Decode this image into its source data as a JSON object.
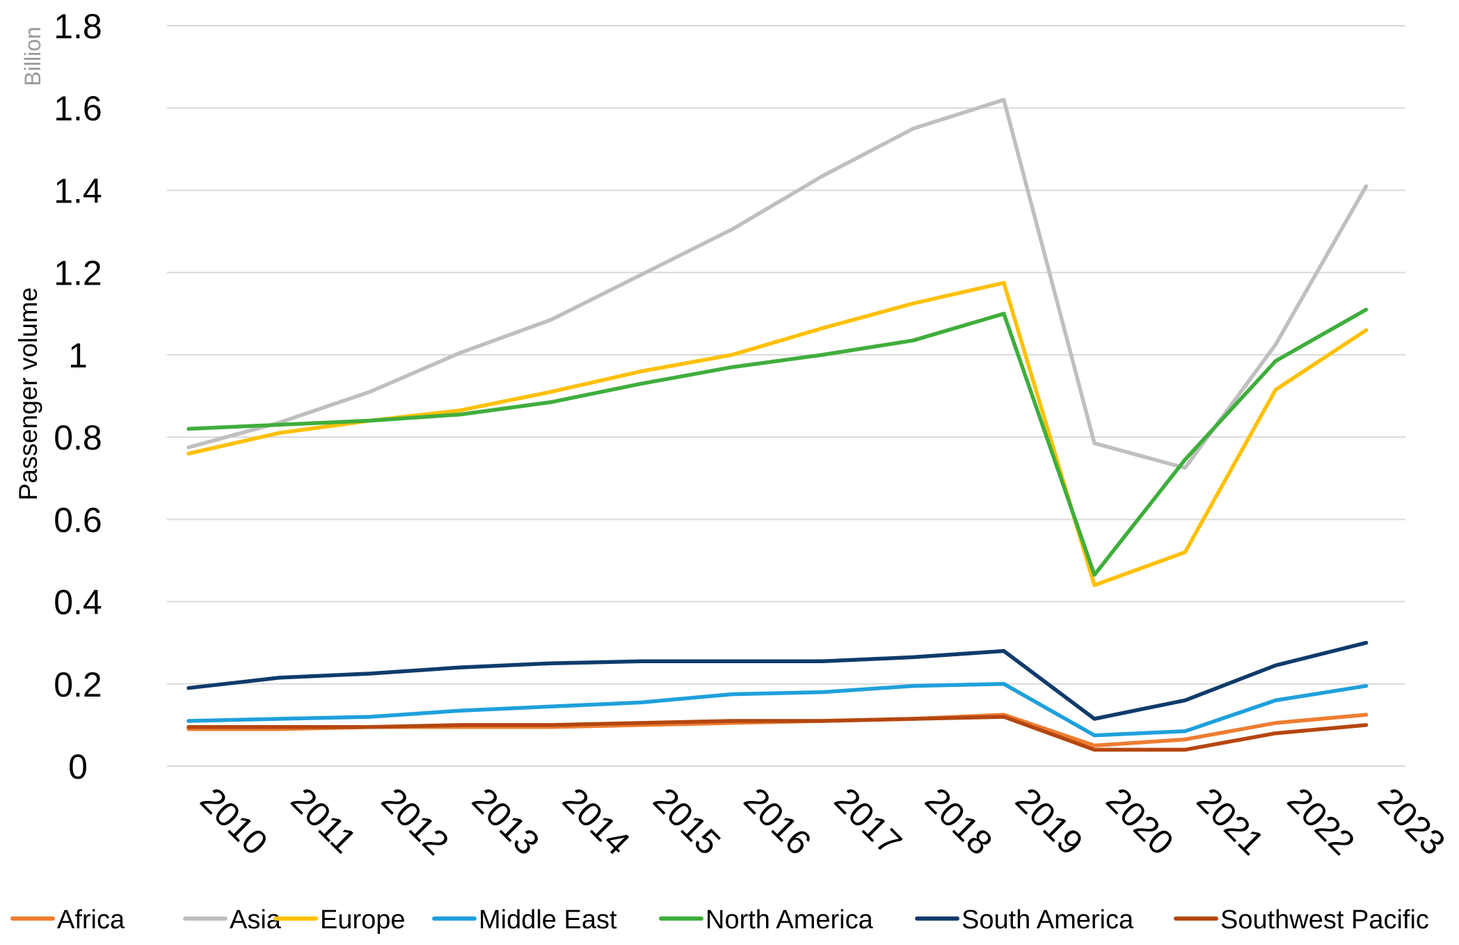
{
  "chart_data": {
    "type": "line",
    "title": "",
    "xlabel": "",
    "ylabel": "Passenger volume",
    "y_unit_label": "Billion",
    "ylim": [
      0,
      1.8
    ],
    "y_ticks": [
      {
        "value": 0,
        "label": "0"
      },
      {
        "value": 0.2,
        "label": "0.2"
      },
      {
        "value": 0.4,
        "label": "0.4"
      },
      {
        "value": 0.6,
        "label": "0.6"
      },
      {
        "value": 0.8,
        "label": "0.8"
      },
      {
        "value": 1.0,
        "label": "1"
      },
      {
        "value": 1.2,
        "label": "1.2"
      },
      {
        "value": 1.4,
        "label": "1.4"
      },
      {
        "value": 1.6,
        "label": "1.6"
      },
      {
        "value": 1.8,
        "label": "1.8"
      }
    ],
    "grid": true,
    "legend_position": "bottom",
    "categories": [
      "2010",
      "2011",
      "2012",
      "2013",
      "2014",
      "2015",
      "2016",
      "2017",
      "2018",
      "2019",
      "2020",
      "2021",
      "2022",
      "2023"
    ],
    "series": [
      {
        "name": "Africa",
        "color": "#ED7D31",
        "values": [
          0.09,
          0.09,
          0.095,
          0.095,
          0.095,
          0.1,
          0.105,
          0.11,
          0.115,
          0.125,
          0.05,
          0.065,
          0.105,
          0.125
        ]
      },
      {
        "name": "Asia",
        "color": "#BFBFBF",
        "values": [
          0.775,
          0.835,
          0.91,
          1.005,
          1.085,
          1.195,
          1.305,
          1.435,
          1.55,
          1.62,
          0.785,
          0.725,
          1.025,
          1.41
        ]
      },
      {
        "name": "Europe",
        "color": "#FFC000",
        "values": [
          0.76,
          0.81,
          0.84,
          0.865,
          0.91,
          0.96,
          1.0,
          1.065,
          1.125,
          1.175,
          0.44,
          0.52,
          0.915,
          1.06
        ]
      },
      {
        "name": "Middle East",
        "color": "#1FA0DC",
        "values": [
          0.11,
          0.115,
          0.12,
          0.135,
          0.145,
          0.155,
          0.175,
          0.18,
          0.195,
          0.2,
          0.075,
          0.085,
          0.16,
          0.195
        ]
      },
      {
        "name": "North America",
        "color": "#3FAE3C",
        "values": [
          0.82,
          0.83,
          0.84,
          0.855,
          0.885,
          0.93,
          0.97,
          1.0,
          1.035,
          1.1,
          0.465,
          0.745,
          0.985,
          1.11
        ]
      },
      {
        "name": "South America",
        "color": "#0E3B6B",
        "values": [
          0.19,
          0.215,
          0.225,
          0.24,
          0.25,
          0.255,
          0.255,
          0.255,
          0.265,
          0.28,
          0.115,
          0.16,
          0.245,
          0.3
        ]
      },
      {
        "name": "Southwest Pacific",
        "color": "#B5460F",
        "values": [
          0.095,
          0.095,
          0.095,
          0.1,
          0.1,
          0.105,
          0.11,
          0.11,
          0.115,
          0.12,
          0.04,
          0.04,
          0.08,
          0.1
        ]
      }
    ]
  }
}
